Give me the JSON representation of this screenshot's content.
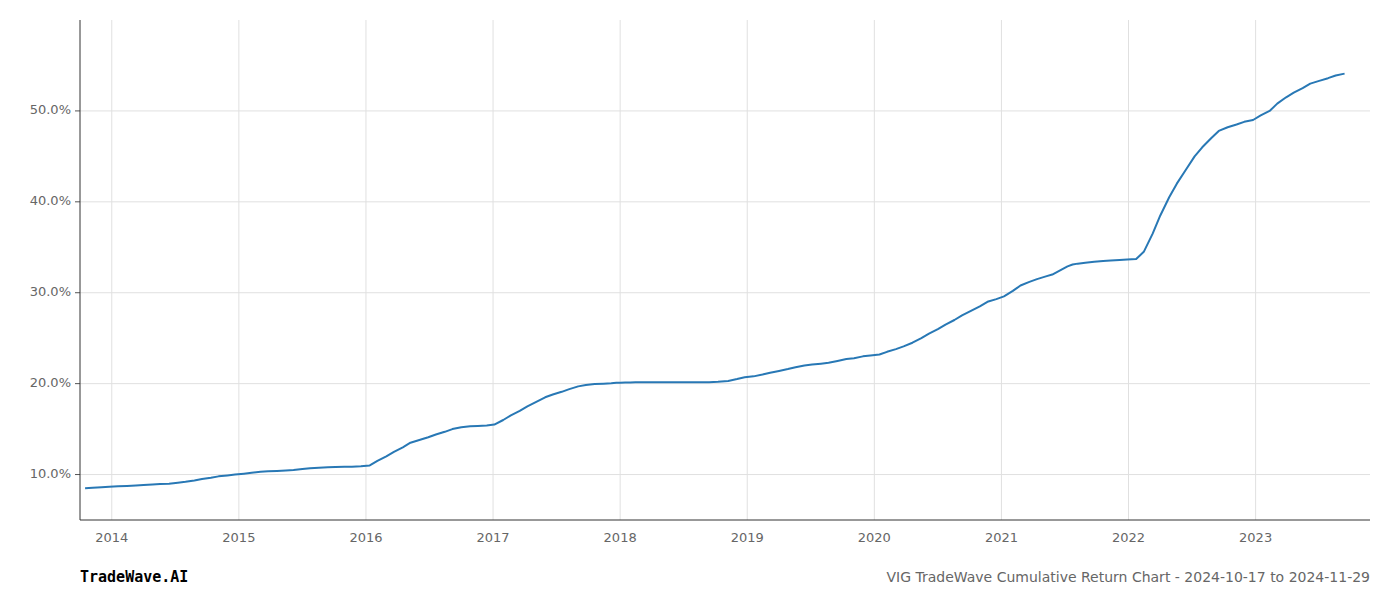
{
  "chart_data": {
    "type": "line",
    "title": "VIG TradeWave Cumulative Return Chart - 2024-10-17 to 2024-11-29",
    "annotations": [
      "TradeWave.AI"
    ],
    "color": "#2878b5",
    "grid": true,
    "x": [
      2013.79,
      2013.85,
      2013.92,
      2013.98,
      2014.05,
      2014.12,
      2014.19,
      2014.25,
      2014.32,
      2014.38,
      2014.45,
      2014.52,
      2014.58,
      2014.65,
      2014.71,
      2014.78,
      2014.84,
      2014.91,
      2014.97,
      2015.04,
      2015.1,
      2015.17,
      2015.23,
      2015.3,
      2015.37,
      2015.43,
      2015.5,
      2015.56,
      2015.63,
      2015.7,
      2015.76,
      2015.83,
      2015.89,
      2015.96,
      2016.03,
      2016.09,
      2016.16,
      2016.22,
      2016.29,
      2016.35,
      2016.42,
      2016.49,
      2016.55,
      2016.62,
      2016.68,
      2016.75,
      2016.82,
      2016.88,
      2016.95,
      2017.01,
      2017.08,
      2017.14,
      2017.21,
      2017.27,
      2017.34,
      2017.41,
      2017.47,
      2017.54,
      2017.6,
      2017.67,
      2017.73,
      2017.8,
      2017.87,
      2017.93,
      2017.97,
      2018.0,
      2018.04,
      2018.08,
      2018.12,
      2018.16,
      2018.2,
      2018.25,
      2018.3,
      2018.38,
      2018.46,
      2018.54,
      2018.62,
      2018.7,
      2018.77,
      2018.85,
      2018.92,
      2018.98,
      2019.05,
      2019.12,
      2019.18,
      2019.25,
      2019.32,
      2019.38,
      2019.45,
      2019.51,
      2019.58,
      2019.64,
      2019.71,
      2019.78,
      2019.84,
      2019.91,
      2019.97,
      2020.04,
      2020.1,
      2020.17,
      2020.23,
      2020.3,
      2020.37,
      2020.43,
      2020.5,
      2020.56,
      2020.63,
      2020.69,
      2020.76,
      2020.83,
      2020.89,
      2020.96,
      2021.02,
      2021.09,
      2021.15,
      2021.22,
      2021.28,
      2021.35,
      2021.4,
      2021.44,
      2021.48,
      2021.52,
      2021.56,
      2021.6,
      2021.66,
      2021.73,
      2021.8,
      2021.86,
      2021.93,
      2021.99,
      2022.06,
      2022.12,
      2022.19,
      2022.25,
      2022.32,
      2022.38,
      2022.45,
      2022.52,
      2022.58,
      2022.65,
      2022.71,
      2022.78,
      2022.85,
      2022.91,
      2022.98,
      2023.04,
      2023.11,
      2023.17,
      2023.24,
      2023.3,
      2023.37,
      2023.43,
      2023.5,
      2023.57,
      2023.63,
      2023.7
    ],
    "values": [
      8.5,
      8.55,
      8.6,
      8.65,
      8.7,
      8.75,
      8.8,
      8.85,
      8.9,
      8.95,
      9.0,
      9.1,
      9.2,
      9.35,
      9.5,
      9.65,
      9.8,
      9.9,
      10.0,
      10.1,
      10.2,
      10.3,
      10.35,
      10.4,
      10.45,
      10.5,
      10.6,
      10.7,
      10.75,
      10.8,
      10.82,
      10.85,
      10.87,
      10.9,
      11.0,
      11.5,
      12.0,
      12.5,
      13.0,
      13.5,
      13.8,
      14.1,
      14.4,
      14.7,
      15.0,
      15.2,
      15.3,
      15.35,
      15.4,
      15.5,
      16.0,
      16.5,
      17.0,
      17.5,
      18.0,
      18.5,
      18.8,
      19.1,
      19.4,
      19.7,
      19.85,
      19.95,
      20.0,
      20.05,
      20.1,
      20.1,
      20.12,
      20.13,
      20.14,
      20.14,
      20.14,
      20.14,
      20.14,
      20.15,
      20.15,
      20.15,
      20.15,
      20.15,
      20.2,
      20.3,
      20.5,
      20.7,
      20.8,
      21.0,
      21.2,
      21.4,
      21.6,
      21.8,
      22.0,
      22.1,
      22.2,
      22.3,
      22.5,
      22.7,
      22.8,
      23.0,
      23.1,
      23.2,
      23.5,
      23.8,
      24.1,
      24.5,
      25.0,
      25.5,
      26.0,
      26.5,
      27.0,
      27.5,
      28.0,
      28.5,
      29.0,
      29.3,
      29.6,
      30.2,
      30.8,
      31.2,
      31.5,
      31.8,
      32.0,
      32.3,
      32.6,
      32.9,
      33.1,
      33.2,
      33.3,
      33.4,
      33.5,
      33.55,
      33.6,
      33.65,
      33.7,
      34.5,
      36.5,
      38.5,
      40.5,
      42.0,
      43.5,
      45.0,
      46.0,
      47.0,
      47.8,
      48.2,
      48.5,
      48.8,
      49.0,
      49.5,
      50.0,
      50.8,
      51.5,
      52.0,
      52.5,
      53.0,
      53.3,
      53.6,
      53.9,
      54.1
    ],
    "xlim": [
      2013.75,
      2023.9
    ],
    "xticks": [
      2014,
      2015,
      2016,
      2017,
      2018,
      2019,
      2020,
      2021,
      2022,
      2023
    ],
    "ylim": [
      5,
      60
    ],
    "yticks": [
      {
        "value": 10.0,
        "label": "10.0%"
      },
      {
        "value": 20.0,
        "label": "20.0%"
      },
      {
        "value": 30.0,
        "label": "30.0%"
      },
      {
        "value": 40.0,
        "label": "40.0%"
      },
      {
        "value": 50.0,
        "label": "50.0%"
      }
    ]
  }
}
